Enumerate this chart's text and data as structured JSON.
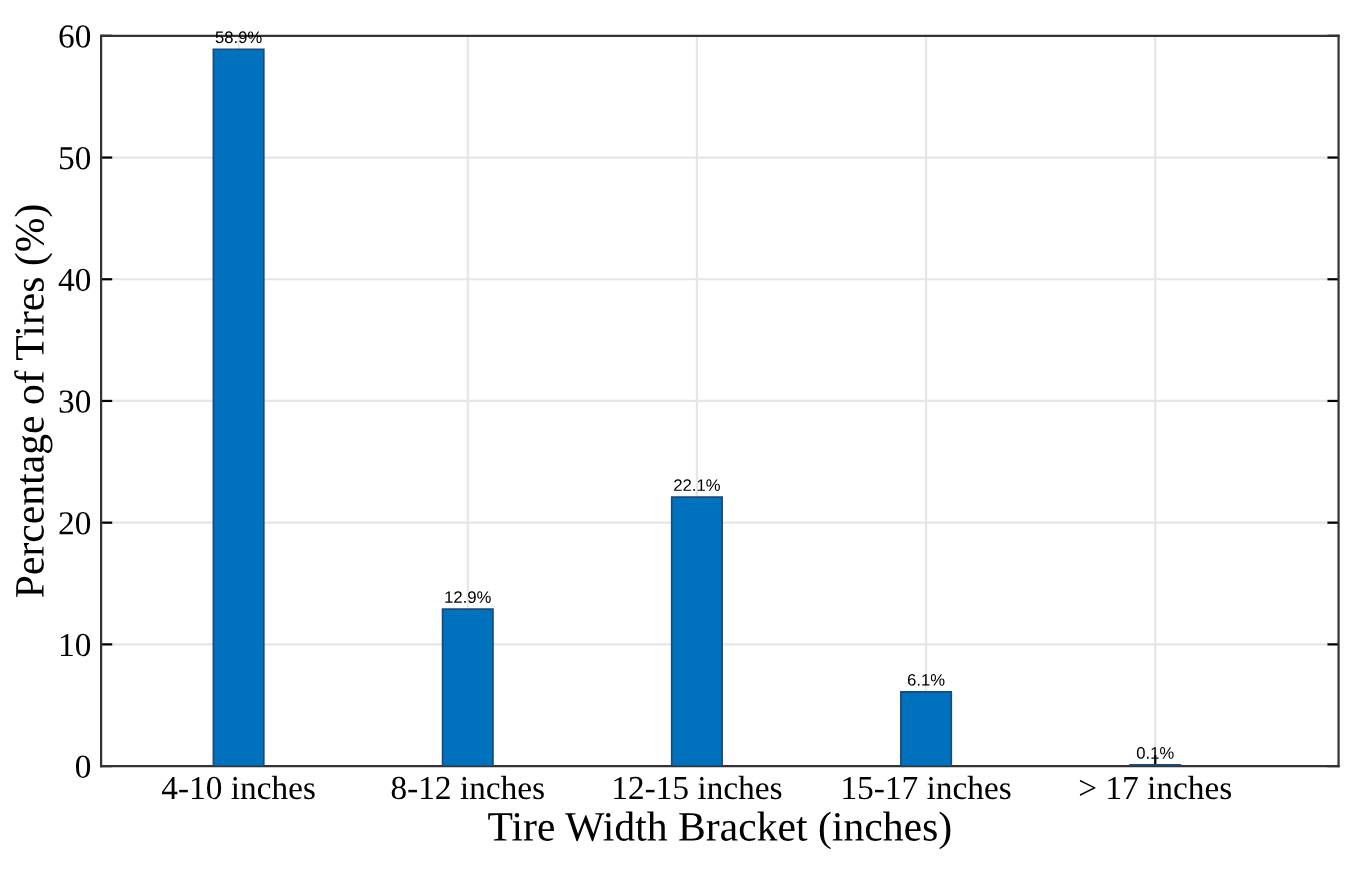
{
  "chart_data": {
    "type": "bar",
    "xlabel": "Tire Width Bracket (inches)",
    "ylabel": "Percentage of Tires (%)",
    "categories": [
      "4-10 inches",
      "8-12 inches",
      "12-15 inches",
      "15-17 inches",
      "> 17 inches"
    ],
    "values": [
      58.9,
      12.9,
      22.1,
      6.1,
      0.1
    ],
    "value_labels": [
      "58.9%",
      "12.9%",
      "22.1%",
      "6.1%",
      "0.1%"
    ],
    "color": "#0072bd",
    "ylim": [
      0,
      60
    ],
    "yticks": [
      0,
      10,
      20,
      30,
      40,
      50,
      60
    ],
    "grid": true
  }
}
